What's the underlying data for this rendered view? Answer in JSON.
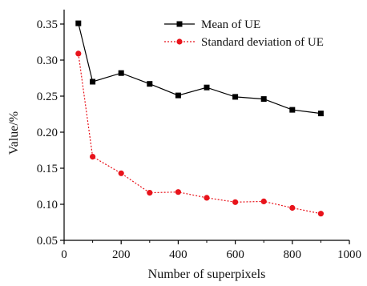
{
  "chart_data": {
    "type": "line",
    "xlabel": "Number of superpixels",
    "ylabel": "Value/%",
    "xlim": [
      0,
      1000
    ],
    "ylim": [
      0.05,
      0.37
    ],
    "xticks": [
      0,
      200,
      400,
      600,
      800,
      1000
    ],
    "yticks": [
      0.05,
      0.1,
      0.15,
      0.2,
      0.25,
      0.3,
      0.35
    ],
    "xtick_labels": [
      "0",
      "200",
      "400",
      "600",
      "800",
      "1000"
    ],
    "ytick_labels": [
      "0.05",
      "0.10",
      "0.15",
      "0.20",
      "0.25",
      "0.30",
      "0.35"
    ],
    "grid": false,
    "legend_position": "top-right",
    "series": [
      {
        "name": "Mean of UE",
        "color": "#000000",
        "marker": "square",
        "line_style": "solid",
        "x": [
          50,
          100,
          200,
          300,
          400,
          500,
          600,
          700,
          800,
          900
        ],
        "y": [
          0.351,
          0.27,
          0.282,
          0.267,
          0.251,
          0.262,
          0.249,
          0.246,
          0.231,
          0.226
        ]
      },
      {
        "name": "Standard deviation of UE",
        "color": "#e8131b",
        "marker": "circle",
        "line_style": "dotted",
        "x": [
          50,
          100,
          200,
          300,
          400,
          500,
          600,
          700,
          800,
          900
        ],
        "y": [
          0.309,
          0.166,
          0.143,
          0.116,
          0.117,
          0.109,
          0.103,
          0.104,
          0.095,
          0.087
        ]
      }
    ]
  }
}
